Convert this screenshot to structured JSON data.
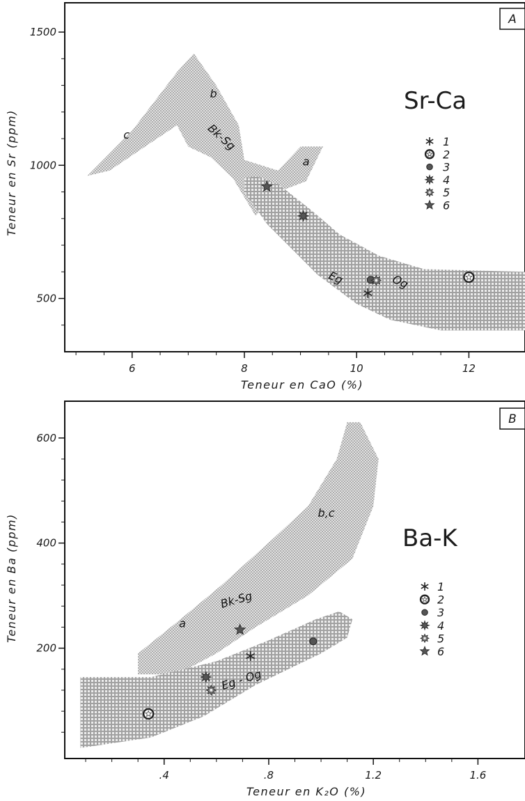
{
  "chart_data": [
    {
      "type": "scatter",
      "panel_label": "A",
      "title": "Sr-Ca",
      "xlabel": "Teneur en CaO (%)",
      "ylabel": "Teneur en Sr (ppm)",
      "xlim": [
        4.8,
        13.0
      ],
      "ylim": [
        300,
        1610
      ],
      "x_ticks": [
        "6",
        "8",
        "10",
        "12"
      ],
      "y_ticks": [
        "500",
        "1000",
        "1500"
      ],
      "fields": [
        {
          "name": "Bk-Sg",
          "label": "Bk-Sg",
          "sub_labels": [
            "a",
            "b",
            "c"
          ],
          "polygon": [
            [
              5.2,
              960
            ],
            [
              6.0,
              1130
            ],
            [
              6.8,
              1350
            ],
            [
              7.1,
              1420
            ],
            [
              7.5,
              1300
            ],
            [
              7.9,
              1150
            ],
            [
              8.0,
              1020
            ],
            [
              8.6,
              980
            ],
            [
              9.0,
              1070
            ],
            [
              9.4,
              1070
            ],
            [
              9.1,
              940
            ],
            [
              8.6,
              900
            ],
            [
              8.2,
              810
            ],
            [
              7.8,
              950
            ],
            [
              7.4,
              1030
            ],
            [
              7.0,
              1070
            ],
            [
              6.8,
              1150
            ],
            [
              6.3,
              1080
            ],
            [
              5.6,
              980
            ]
          ]
        },
        {
          "name": "Eg-Og",
          "label": "Eg - Og",
          "polygon": [
            [
              8.2,
              960
            ],
            [
              8.6,
              930
            ],
            [
              9.2,
              830
            ],
            [
              9.7,
              740
            ],
            [
              10.4,
              660
            ],
            [
              11.2,
              610
            ],
            [
              13.0,
              600
            ],
            [
              13.0,
              380
            ],
            [
              11.5,
              380
            ],
            [
              10.6,
              420
            ],
            [
              10.0,
              480
            ],
            [
              9.3,
              590
            ],
            [
              8.4,
              780
            ],
            [
              8.0,
              900
            ],
            [
              8.0,
              950
            ]
          ]
        }
      ],
      "sub_labels": [
        {
          "text": "a",
          "x": 9.1,
          "y": 1000
        },
        {
          "text": "b",
          "x": 7.45,
          "y": 1255
        },
        {
          "text": "c",
          "x": 5.9,
          "y": 1100
        },
        {
          "text": "Bk-Sg",
          "x": 7.55,
          "y": 1095
        },
        {
          "text": "Eg",
          "x": 9.6,
          "y": 565
        },
        {
          "text": "Og",
          "x": 10.75,
          "y": 550
        }
      ],
      "points": [
        {
          "symbol": "1",
          "x": 10.2,
          "y": 520
        },
        {
          "symbol": "2",
          "x": 12.0,
          "y": 580
        },
        {
          "symbol": "3",
          "x": 10.25,
          "y": 570
        },
        {
          "symbol": "4",
          "x": 9.05,
          "y": 810
        },
        {
          "symbol": "5",
          "x": 10.35,
          "y": 568
        },
        {
          "symbol": "6",
          "x": 8.4,
          "y": 920
        }
      ],
      "legend": {
        "placement": "right",
        "labels": [
          "1",
          "2",
          "3",
          "4",
          "5",
          "6"
        ]
      }
    },
    {
      "type": "scatter",
      "panel_label": "B",
      "title": "Ba-K",
      "xlabel": "Teneur en K₂O (%)",
      "ylabel": "Teneur en Ba (ppm)",
      "xlim": [
        0.02,
        1.78
      ],
      "ylim": [
        -10,
        670
      ],
      "x_ticks": [
        ".4",
        ".8",
        "1.2",
        "1.6"
      ],
      "y_ticks": [
        "200",
        "400",
        "600"
      ],
      "fields": [
        {
          "name": "Bk-Sg",
          "label": "Bk-Sg",
          "sub_labels": [
            "a",
            "b,c"
          ],
          "polygon": [
            [
              0.3,
              150
            ],
            [
              0.3,
              190
            ],
            [
              0.45,
              250
            ],
            [
              0.62,
              320
            ],
            [
              0.82,
              410
            ],
            [
              0.95,
              470
            ],
            [
              1.06,
              560
            ],
            [
              1.1,
              630
            ],
            [
              1.15,
              630
            ],
            [
              1.22,
              560
            ],
            [
              1.2,
              470
            ],
            [
              1.12,
              370
            ],
            [
              0.95,
              300
            ],
            [
              0.75,
              240
            ],
            [
              0.6,
              190
            ],
            [
              0.45,
              150
            ]
          ]
        },
        {
          "name": "Eg-Og",
          "label": "Eg - Og",
          "polygon": [
            [
              0.08,
              145
            ],
            [
              0.35,
              145
            ],
            [
              0.6,
              175
            ],
            [
              0.8,
              215
            ],
            [
              0.98,
              255
            ],
            [
              1.07,
              270
            ],
            [
              1.12,
              255
            ],
            [
              1.1,
              220
            ],
            [
              1.0,
              190
            ],
            [
              0.75,
              130
            ],
            [
              0.55,
              70
            ],
            [
              0.35,
              30
            ],
            [
              0.08,
              10
            ]
          ]
        }
      ],
      "sub_labels": [
        {
          "text": "a",
          "x": 0.47,
          "y": 240
        },
        {
          "text": "b,c",
          "x": 1.02,
          "y": 450
        },
        {
          "text": "Bk-Sg",
          "x": 0.68,
          "y": 285
        },
        {
          "text": "Eg - Og",
          "x": 0.7,
          "y": 133
        }
      ],
      "points": [
        {
          "symbol": "1",
          "x": 0.73,
          "y": 185
        },
        {
          "symbol": "2",
          "x": 0.34,
          "y": 75
        },
        {
          "symbol": "3",
          "x": 0.97,
          "y": 213
        },
        {
          "symbol": "4",
          "x": 0.56,
          "y": 145
        },
        {
          "symbol": "5",
          "x": 0.58,
          "y": 120
        },
        {
          "symbol": "6",
          "x": 0.69,
          "y": 235
        }
      ],
      "legend": {
        "placement": "right",
        "labels": [
          "1",
          "2",
          "3",
          "4",
          "5",
          "6"
        ]
      }
    }
  ]
}
